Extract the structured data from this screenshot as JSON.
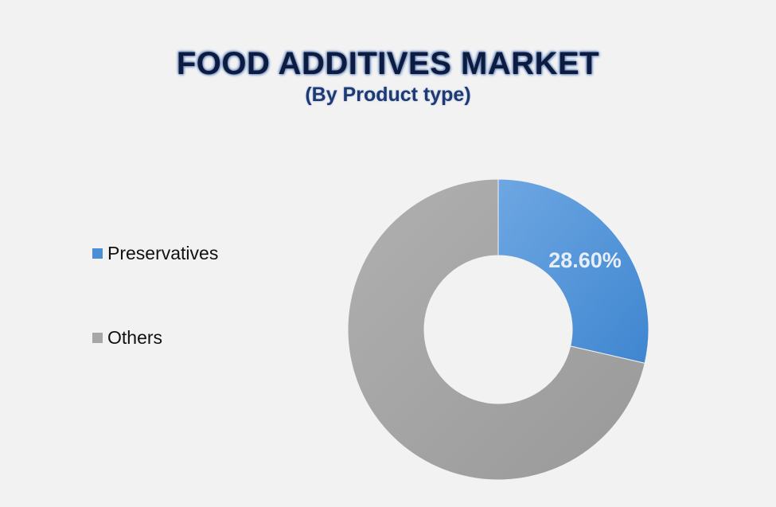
{
  "chart_data": {
    "type": "pie",
    "variant": "donut",
    "title": "FOOD ADDITIVES MARKET",
    "subtitle": "(By Product type)",
    "categories": [
      "Preservatives",
      "Others"
    ],
    "values": [
      28.6,
      71.4
    ],
    "unit": "%",
    "data_labels": [
      "28.60%",
      ""
    ],
    "colors": [
      "#4a8fd6",
      "#a6a6a6"
    ],
    "legend": {
      "placement": "left",
      "items": [
        {
          "label": "Preservatives",
          "color": "#4a8fd6"
        },
        {
          "label": "Others",
          "color": "#a6a6a6"
        }
      ]
    }
  }
}
